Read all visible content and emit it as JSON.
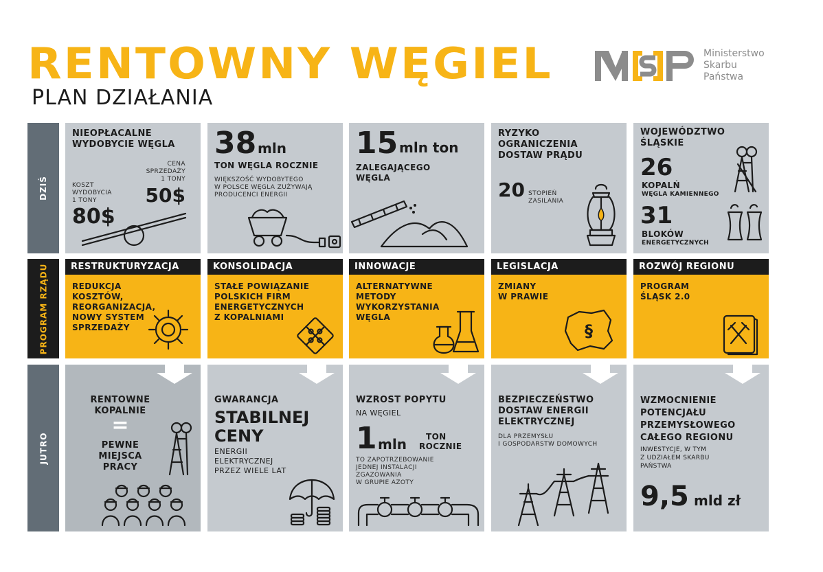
{
  "header": {
    "title": "RENTOWNY WĘGIEL",
    "subtitle": "PLAN DZIAŁANIA"
  },
  "logo": {
    "mark": "MSP",
    "lines": [
      "Ministerstwo",
      "Skarbu",
      "Państwa"
    ]
  },
  "row_labels": {
    "today": "DZIŚ",
    "program": "PROGRAM RZĄDU",
    "tomorrow": "JUTRO"
  },
  "colors": {
    "accent": "#f7b416",
    "dark": "#1c1c1c",
    "gray": "#c5cacf",
    "gray_dark": "#b2b8bd",
    "row_label": "#626d76"
  },
  "today": {
    "c1": {
      "title": [
        "NIEOPŁACALNE",
        "WYDOBYCIE WĘGLA"
      ],
      "sale_label": [
        "CENA",
        "SPRZEDAŻY",
        "1 TONY"
      ],
      "sale_value": "50$",
      "cost_label": [
        "KOSZT",
        "WYDOBYCIA",
        "1 TONY"
      ],
      "cost_value": "80$",
      "icon": "seesaw-icon"
    },
    "c2": {
      "number": "38",
      "unit": "mln",
      "headline": "TON WĘGLA ROCZNIE",
      "note": [
        "WIĘKSZOŚĆ WYDOBYTEGO",
        "W POLSCE WĘGLA ZUŻYWAJĄ",
        "PRODUCENCI ENERGII"
      ],
      "icon": "mine-cart-plug-icon"
    },
    "c3": {
      "number": "15",
      "unit": "mln ton",
      "headline": [
        "ZALEGAJĄCEGO",
        "WĘGLA"
      ],
      "icon": "conveyor-coal-pile-icon"
    },
    "c4": {
      "title": [
        "RYZYKO",
        "OGRANICZENIA",
        "DOSTAW PRĄDU"
      ],
      "number": "20",
      "number_label": [
        "STOPIEŃ",
        "ZASILANIA"
      ],
      "icon": "oil-lamp-icon"
    },
    "c5": {
      "title": [
        "WOJEWÓDZTWO",
        "ŚLĄSKIE"
      ],
      "mines_number": "26",
      "mines_label": "KOPALŃ",
      "mines_sub": "WĘGLA KAMIENNEGO",
      "units_number": "31",
      "units_label": "BLOKÓW",
      "units_sub": "ENERGETYCZNYCH",
      "icons": [
        "mine-tower-icon",
        "cooling-towers-icon"
      ]
    }
  },
  "program": [
    {
      "header": "RESTRUKTURYZACJA",
      "body": [
        "REDUKCJA",
        "KOSZTÓW,",
        "REORGANIZACJA,",
        "NOWY SYSTEM",
        "SPRZEDAŻY"
      ],
      "icon": "gear-icon"
    },
    {
      "header": "KONSOLIDACJA",
      "body": [
        "STAŁE POWIĄZANIE",
        "POLSKICH FIRM",
        "ENERGETYCZNYCH",
        "Z KOPALNIAMI"
      ],
      "icon": "puzzle-icon"
    },
    {
      "header": "INNOWACJE",
      "body": [
        "ALTERNATYWNE",
        "METODY",
        "WYKORZYSTANIA",
        "WĘGLA"
      ],
      "icon": "lab-flasks-icon"
    },
    {
      "header": "LEGISLACJA",
      "body": [
        "ZMIANY",
        "W PRAWIE"
      ],
      "icon": "poland-map-paragraph-icon",
      "symbol": "§"
    },
    {
      "header": "ROZWÓJ REGIONU",
      "body": [
        "PROGRAM",
        "ŚLĄSK 2.0"
      ],
      "icon": "hammer-pick-book-icon"
    }
  ],
  "tomorrow": {
    "c1": {
      "line1": [
        "RENTOWNE",
        "KOPALNIE"
      ],
      "equals": "=",
      "line2": [
        "PEWNE",
        "MIEJSCA",
        "PRACY"
      ],
      "icons": [
        "mine-tower-icon",
        "miners-group-icon"
      ]
    },
    "c2": {
      "small": "GWARANCJA",
      "big": [
        "STABILNEJ",
        "CENY"
      ],
      "note": [
        "ENERGII",
        "ELEKTRYCZNEJ",
        "PRZEZ WIELE LAT"
      ],
      "icon": "umbrella-coins-icon"
    },
    "c3": {
      "title": "WZROST POPYTU",
      "sub": "NA WĘGIEL",
      "number": "1",
      "unit": "mln",
      "unit_right": [
        "TON",
        "ROCZNIE"
      ],
      "note": [
        "TO ZAPOTRZEBOWANIE",
        "JEDNEJ INSTALACJI",
        "ZGAZOWANIA",
        "W GRUPIE AZOTY"
      ],
      "icon": "pipeline-valves-icon"
    },
    "c4": {
      "title": [
        "BEZPIECZEŃSTWO",
        "DOSTAW ENERGII",
        "ELEKTRYCZNEJ"
      ],
      "note": [
        "DLA PRZEMYSŁU",
        "I GOSPODARSTW DOMOWYCH"
      ],
      "icon": "power-pylons-icon"
    },
    "c5": {
      "title": [
        "WZMOCNIENIE",
        "POTENCJAŁU",
        "PRZEMYSŁOWEGO",
        "CAŁEGO REGIONU"
      ],
      "note": [
        "INWESTYCJE, W TYM",
        "Z UDZIAŁEM SKARBU",
        "PAŃSTWA"
      ],
      "number": "9,5",
      "unit": "mld zł"
    }
  }
}
